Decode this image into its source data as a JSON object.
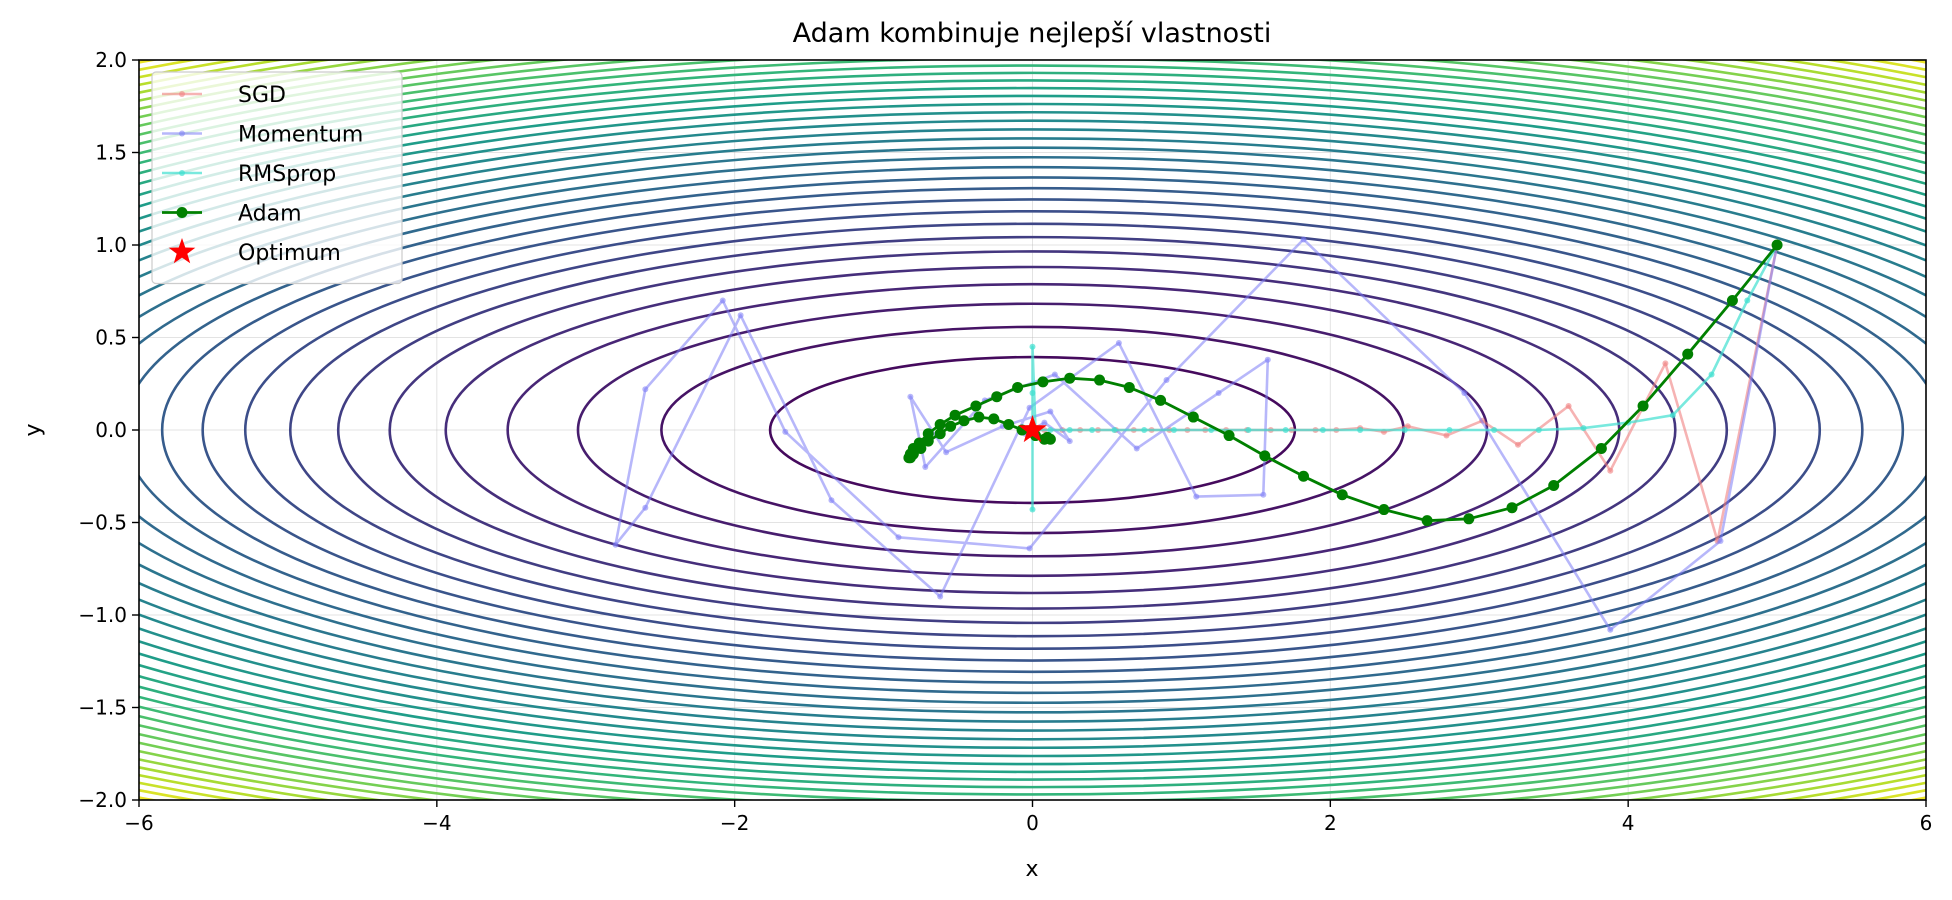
{
  "chart_data": {
    "type": "line",
    "title": "Adam kombinuje nejlepší vlastnosti",
    "xlabel": "x",
    "ylabel": "y",
    "xlim": [
      -6,
      6
    ],
    "ylim": [
      -2,
      2
    ],
    "xticks": [
      -6,
      -4,
      -2,
      0,
      2,
      4,
      6
    ],
    "yticks": [
      -2.0,
      -1.5,
      -1.0,
      -0.5,
      0.0,
      0.5,
      1.0,
      1.5,
      2.0
    ],
    "xtick_labels": [
      "−6",
      "−4",
      "−2",
      "0",
      "2",
      "4",
      "6"
    ],
    "ytick_labels": [
      "−2.0",
      "−1.5",
      "−1.0",
      "−0.5",
      "0.0",
      "0.5",
      "1.0",
      "1.5",
      "2.0"
    ],
    "grid": true,
    "legend_position": "top-left",
    "background": {
      "type": "contour",
      "function": "x^2 + 20*y^2",
      "colormap": "viridis"
    },
    "series": [
      {
        "name": "SGD",
        "color": "#f08080",
        "x": [
          5.0,
          4.6,
          4.25,
          3.88,
          3.6,
          3.26,
          3.02,
          2.78,
          2.52,
          2.36,
          2.2,
          2.04,
          1.9,
          1.74,
          1.6,
          1.44,
          1.3,
          1.16,
          1.04,
          0.92,
          0.8,
          0.68,
          0.56,
          0.44,
          0.32,
          0.2,
          0.08,
          0.0
        ],
        "y": [
          1.0,
          -0.6,
          0.36,
          -0.22,
          0.13,
          -0.08,
          0.05,
          -0.03,
          0.02,
          -0.01,
          0.01,
          0.0,
          0.0,
          0.0,
          0.0,
          0.0,
          0.0,
          0.0,
          0.0,
          0.0,
          0.0,
          0.0,
          0.0,
          0.0,
          0.0,
          0.0,
          0.0,
          0.0
        ]
      },
      {
        "name": "Momentum",
        "color": "#7b7bf5",
        "x": [
          5.0,
          4.62,
          3.88,
          2.9,
          1.82,
          0.9,
          -0.02,
          -0.9,
          -1.66,
          -2.08,
          -2.6,
          -2.8,
          -2.6,
          -1.96,
          -1.35,
          -0.62,
          -0.02,
          0.58,
          1.1,
          1.55,
          1.58,
          1.25,
          0.7,
          0.15,
          -0.32,
          -0.72,
          -0.82,
          -0.58,
          -0.2,
          0.12,
          0.25,
          0.08,
          -0.05,
          -0.02,
          0.02,
          0.0
        ],
        "y": [
          1.0,
          -0.6,
          -1.08,
          0.2,
          1.03,
          0.27,
          -0.64,
          -0.58,
          -0.01,
          0.7,
          0.22,
          -0.62,
          -0.42,
          0.62,
          -0.38,
          -0.9,
          0.12,
          0.47,
          -0.36,
          -0.35,
          0.38,
          0.2,
          -0.1,
          0.3,
          0.16,
          -0.2,
          0.18,
          -0.12,
          0.02,
          0.1,
          -0.06,
          0.04,
          -0.02,
          0.01,
          0.0,
          0.0
        ]
      },
      {
        "name": "RMSprop",
        "color": "#40e0d0",
        "x": [
          5.0,
          4.8,
          4.56,
          4.3,
          4.0,
          3.7,
          3.4,
          3.1,
          2.8,
          2.5,
          2.2,
          1.95,
          1.7,
          1.45,
          1.2,
          0.95,
          0.75,
          0.55,
          0.4,
          0.25,
          0.12,
          0.02,
          0.0,
          0.0,
          0.0,
          0.0
        ],
        "y": [
          1.0,
          0.7,
          0.3,
          0.08,
          0.04,
          0.01,
          0.0,
          0.0,
          0.0,
          0.0,
          0.0,
          0.0,
          0.0,
          0.0,
          0.0,
          0.0,
          0.0,
          0.0,
          0.0,
          0.0,
          0.0,
          0.0,
          0.45,
          -0.43,
          0.2,
          0.0
        ]
      },
      {
        "name": "Adam",
        "color": "#008000",
        "x": [
          5.0,
          4.7,
          4.4,
          4.1,
          3.82,
          3.5,
          3.22,
          2.93,
          2.65,
          2.36,
          2.08,
          1.82,
          1.56,
          1.32,
          1.08,
          0.86,
          0.65,
          0.45,
          0.25,
          0.07,
          -0.1,
          -0.24,
          -0.38,
          -0.52,
          -0.62,
          -0.7,
          -0.76,
          -0.8,
          -0.82,
          -0.83,
          -0.82,
          -0.8,
          -0.75,
          -0.7,
          -0.62,
          -0.55,
          -0.46,
          -0.36,
          -0.26,
          -0.16,
          -0.07,
          0.02,
          0.08,
          0.12,
          0.1
        ],
        "y": [
          1.0,
          0.7,
          0.41,
          0.13,
          -0.1,
          -0.3,
          -0.42,
          -0.48,
          -0.49,
          -0.43,
          -0.35,
          -0.25,
          -0.14,
          -0.03,
          0.07,
          0.16,
          0.23,
          0.27,
          0.28,
          0.26,
          0.23,
          0.18,
          0.13,
          0.08,
          0.03,
          -0.02,
          -0.07,
          -0.1,
          -0.13,
          -0.15,
          -0.15,
          -0.13,
          -0.1,
          -0.06,
          -0.02,
          0.02,
          0.05,
          0.07,
          0.06,
          0.03,
          0.0,
          -0.03,
          -0.05,
          -0.05,
          -0.04
        ]
      }
    ],
    "optimum": {
      "name": "Optimum",
      "x": 0,
      "y": 0,
      "color": "#ff0000",
      "marker": "star"
    }
  }
}
